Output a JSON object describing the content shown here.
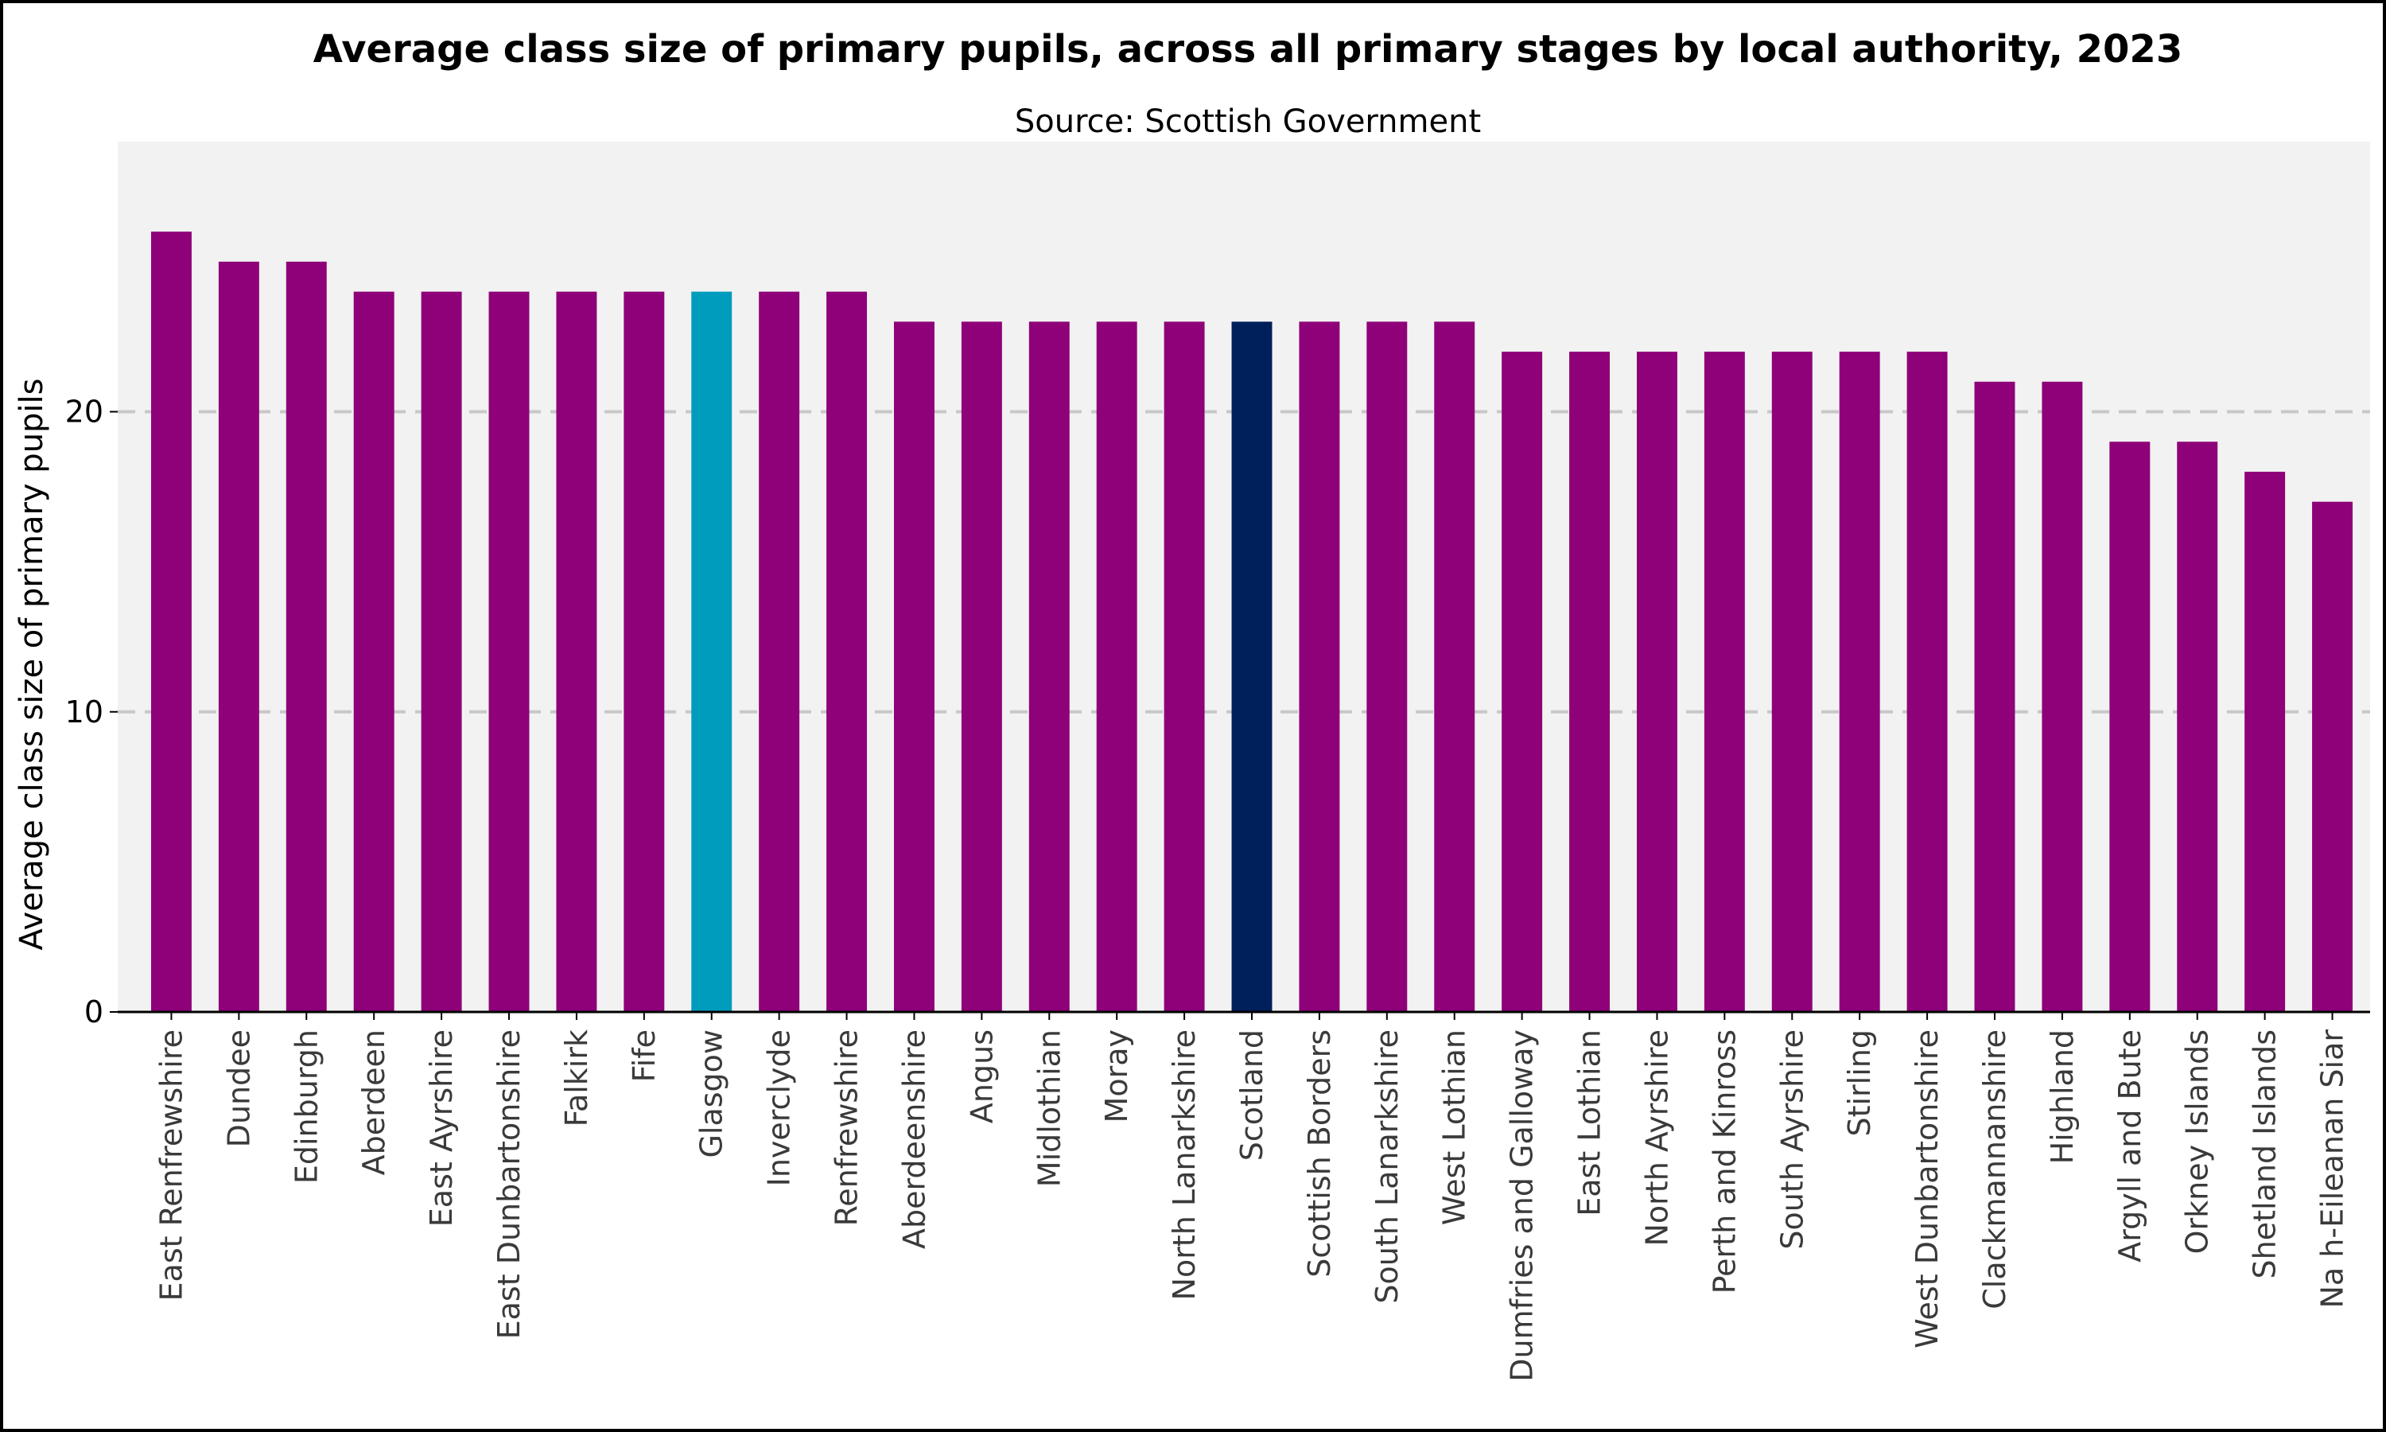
{
  "chart_data": {
    "type": "bar",
    "title": "Average class size of primary pupils, across all primary stages by local authority, 2023",
    "subtitle": "Source: Scottish Government",
    "xlabel": "",
    "ylabel": "Average class size of primary pupils",
    "ylim": [
      0,
      29
    ],
    "yticks": [
      0,
      10,
      20
    ],
    "grid": "horizontal dashed at 10 and 20",
    "categories": [
      "East Renfrewshire",
      "Dundee",
      "Edinburgh",
      "Aberdeen",
      "East Ayrshire",
      "East Dunbartonshire",
      "Falkirk",
      "Fife",
      "Glasgow",
      "Inverclyde",
      "Renfrewshire",
      "Aberdeenshire",
      "Angus",
      "Midlothian",
      "Moray",
      "North Lanarkshire",
      "Scotland",
      "Scottish Borders",
      "South Lanarkshire",
      "West Lothian",
      "Dumfries and Galloway",
      "East Lothian",
      "North Ayrshire",
      "Perth and Kinross",
      "South Ayrshire",
      "Stirling",
      "West Dunbartonshire",
      "Clackmannanshire",
      "Highland",
      "Argyll and Bute",
      "Orkney Islands",
      "Shetland Islands",
      "Na h-Eileanan Siar"
    ],
    "values": [
      26,
      25,
      25,
      24,
      24,
      24,
      24,
      24,
      24,
      24,
      24,
      23,
      23,
      23,
      23,
      23,
      23,
      23,
      23,
      23,
      22,
      22,
      22,
      22,
      22,
      22,
      22,
      21,
      21,
      19,
      19,
      18,
      17
    ],
    "colors": {
      "default": "#8e0179",
      "Glasgow": "#009cbe",
      "Scotland": "#00205b",
      "background": "#f2f2f2",
      "grid": "#c8c8c8"
    }
  }
}
